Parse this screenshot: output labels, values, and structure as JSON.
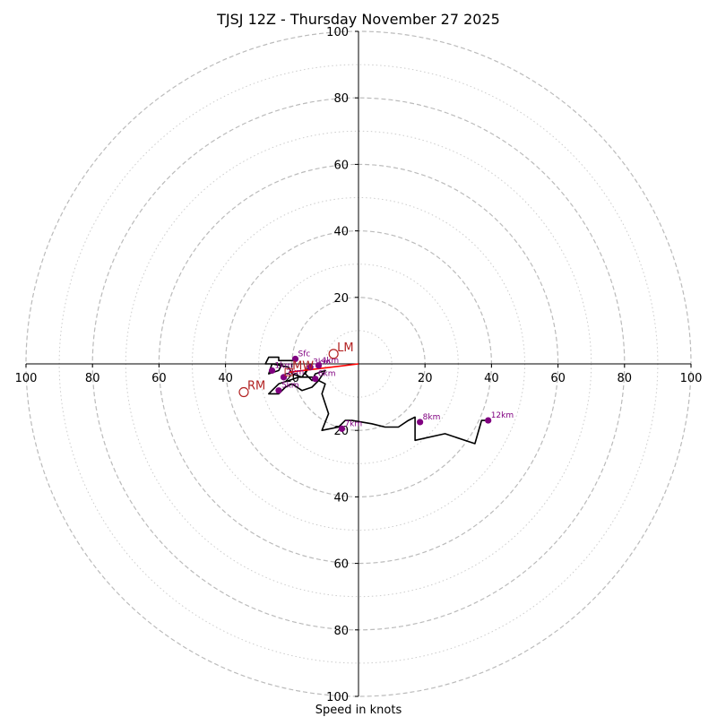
{
  "chart_data": {
    "type": "hodograph",
    "title": "TJSJ 12Z - Thursday November 27 2025",
    "xlabel": "Speed in knots",
    "range": [
      -100,
      100
    ],
    "rings_major": [
      20,
      40,
      60,
      80,
      100
    ],
    "rings_minor": [
      10,
      30,
      50,
      70,
      90
    ],
    "tick_labels_x": [
      "100",
      "80",
      "60",
      "40",
      "20",
      "20",
      "40",
      "60",
      "80",
      "100"
    ],
    "tick_values_x": [
      -100,
      -80,
      -60,
      -40,
      -20,
      20,
      40,
      60,
      80,
      100
    ],
    "tick_labels_y": [
      "100",
      "80",
      "60",
      "40",
      "20",
      "20",
      "40",
      "60",
      "80",
      "100"
    ],
    "tick_values_y": [
      100,
      80,
      60,
      40,
      20,
      -20,
      -40,
      -60,
      -80,
      -100
    ],
    "hodo_line": [
      [
        -19,
        1
      ],
      [
        -24,
        1
      ],
      [
        -24,
        2
      ],
      [
        -27,
        2
      ],
      [
        -28,
        0
      ],
      [
        -23,
        0
      ],
      [
        -24,
        -2
      ],
      [
        -27,
        -3
      ],
      [
        -26,
        0
      ],
      [
        -21,
        -1
      ],
      [
        -20,
        -3
      ],
      [
        -17,
        -4
      ],
      [
        -15,
        -1
      ],
      [
        -16,
        -3
      ],
      [
        -14,
        -5
      ],
      [
        -13,
        -3
      ],
      [
        -10,
        -2
      ],
      [
        -12,
        -5
      ],
      [
        -14,
        -7
      ],
      [
        -17,
        -8
      ],
      [
        -20,
        -6
      ],
      [
        -22,
        -7
      ],
      [
        -24,
        -9
      ],
      [
        -27,
        -9
      ],
      [
        -26,
        -8
      ],
      [
        -24,
        -6
      ],
      [
        -21,
        -5
      ],
      [
        -18,
        -4
      ],
      [
        -14,
        -4
      ],
      [
        -12,
        -5
      ],
      [
        -10,
        -6
      ],
      [
        -11,
        -9
      ],
      [
        -9,
        -15
      ],
      [
        -11,
        -20
      ],
      [
        -6,
        -19
      ],
      [
        -4,
        -17
      ],
      [
        -2,
        -17
      ],
      [
        4,
        -18
      ],
      [
        8,
        -19
      ],
      [
        12,
        -19
      ],
      [
        15,
        -17
      ],
      [
        17,
        -16
      ],
      [
        17,
        -23
      ],
      [
        26,
        -21
      ],
      [
        35,
        -24
      ],
      [
        37,
        -17
      ],
      [
        39,
        -17
      ]
    ],
    "height_markers": [
      {
        "label": "Sfc",
        "u": -19,
        "v": 1.5
      },
      {
        "label": "1km",
        "u": -26,
        "v": -2
      },
      {
        "label": "2km",
        "u": -22.5,
        "v": -4
      },
      {
        "label": "3km",
        "u": -14.5,
        "v": -1
      },
      {
        "label": "4km",
        "u": -12,
        "v": -0.5
      },
      {
        "label": "5km",
        "u": -24,
        "v": -8
      },
      {
        "label": "6km",
        "u": -13,
        "v": -4.5
      },
      {
        "label": "7km",
        "u": -5,
        "v": -19.5
      },
      {
        "label": "8km",
        "u": 18.5,
        "v": -17.5
      },
      {
        "label": "12km",
        "u": 39,
        "v": -17
      }
    ],
    "storm_motion": [
      {
        "label": "LM",
        "u": -7.5,
        "v": 3
      },
      {
        "label": "RM",
        "u": -34.5,
        "v": -8.5
      },
      {
        "label": "MW",
        "u": -21,
        "v": -2.5
      }
    ],
    "shear_vector": {
      "from": [
        -21,
        -2.5
      ],
      "to": [
        0,
        0
      ]
    }
  },
  "colors": {
    "hodo_line": "#000000",
    "marker": "#800080",
    "storm_motion": "#b22222",
    "shear": "#ff0000",
    "grid": "#bbbbbb"
  }
}
